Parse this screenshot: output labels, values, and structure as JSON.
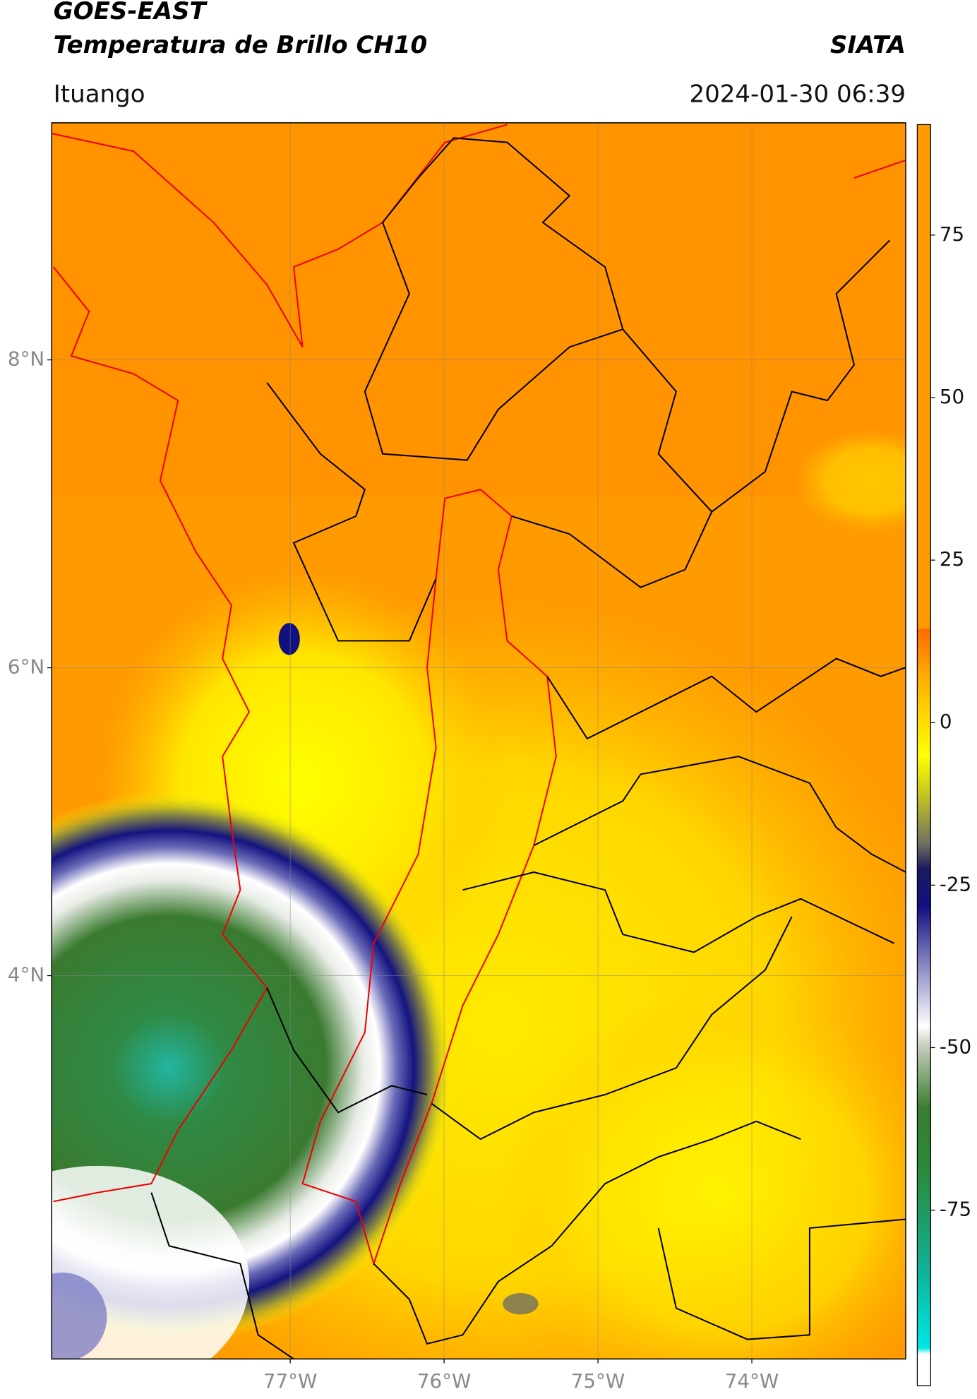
{
  "header": {
    "satellite": "GOES-EAST",
    "product": "Temperatura de Brillo CH10",
    "agency": "SIATA",
    "region": "Ituango",
    "datetime": "2024-01-30 06:39"
  },
  "map": {
    "lonlim": [
      -78.55,
      -73.0
    ],
    "latlim": [
      1.51,
      9.54
    ],
    "lonticks": [
      {
        "value": -77,
        "label": "77°W"
      },
      {
        "value": -76,
        "label": "76°W"
      },
      {
        "value": -75,
        "label": "75°W"
      },
      {
        "value": -74,
        "label": "74°W"
      }
    ],
    "latticks": [
      {
        "value": 8,
        "label": "8°N"
      },
      {
        "value": 6,
        "label": "6°N"
      },
      {
        "value": 4,
        "label": "4°N"
      }
    ],
    "grid": true
  },
  "colorbar": {
    "lim": [
      -102,
      92
    ],
    "ticks": [
      75,
      50,
      25,
      0,
      -25,
      -50,
      -75
    ]
  }
}
